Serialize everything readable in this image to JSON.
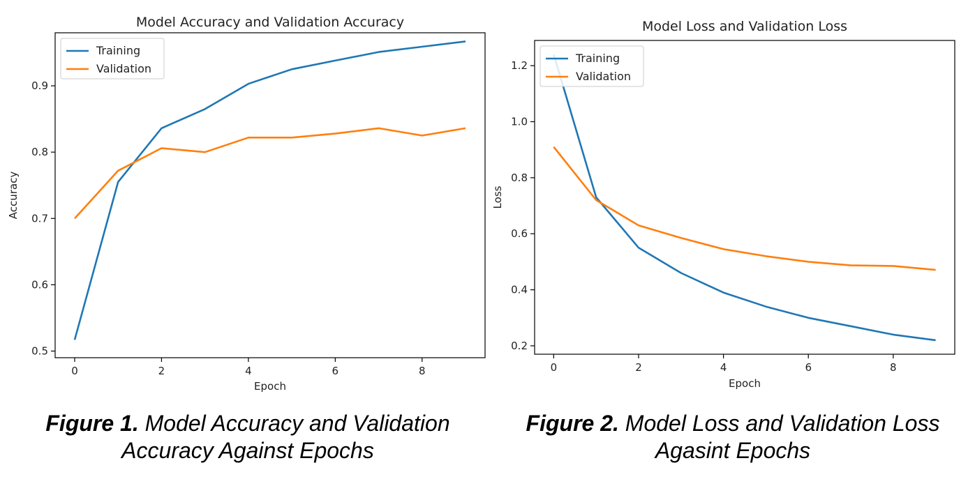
{
  "chart_data": [
    {
      "type": "line",
      "title": "Model Accuracy and Validation Accuracy",
      "xlabel": "Epoch",
      "ylabel": "Accuracy",
      "xlim": [
        -0.45,
        9.45
      ],
      "ylim": [
        0.49,
        0.98
      ],
      "xticks": [
        0,
        2,
        4,
        6,
        8
      ],
      "yticks": [
        0.5,
        0.6,
        0.7,
        0.8,
        0.9
      ],
      "grid": false,
      "legend": "upper-left",
      "x": [
        0,
        1,
        2,
        3,
        4,
        5,
        6,
        7,
        8,
        9
      ],
      "series": [
        {
          "name": "Training",
          "color": "#1f77b4",
          "values": [
            0.517,
            0.755,
            0.836,
            0.865,
            0.903,
            0.925,
            0.938,
            0.951,
            0.959,
            0.967
          ]
        },
        {
          "name": "Validation",
          "color": "#ff7f0e",
          "values": [
            0.7,
            0.772,
            0.806,
            0.8,
            0.822,
            0.822,
            0.828,
            0.836,
            0.825,
            0.836
          ]
        }
      ]
    },
    {
      "type": "line",
      "title": "Model Loss and Validation Loss",
      "xlabel": "Epoch",
      "ylabel": "Loss",
      "xlim": [
        -0.45,
        9.45
      ],
      "ylim": [
        0.17,
        1.29
      ],
      "xticks": [
        0,
        2,
        4,
        6,
        8
      ],
      "yticks": [
        0.2,
        0.4,
        0.6,
        0.8,
        1.0,
        1.2
      ],
      "grid": false,
      "legend": "upper-left",
      "x": [
        0,
        1,
        2,
        3,
        4,
        5,
        6,
        7,
        8,
        9
      ],
      "series": [
        {
          "name": "Training",
          "color": "#1f77b4",
          "values": [
            1.24,
            0.73,
            0.55,
            0.46,
            0.39,
            0.34,
            0.3,
            0.27,
            0.24,
            0.22
          ]
        },
        {
          "name": "Validation",
          "color": "#ff7f0e",
          "values": [
            0.91,
            0.72,
            0.63,
            0.585,
            0.545,
            0.52,
            0.5,
            0.487,
            0.485,
            0.471
          ]
        }
      ]
    }
  ],
  "captions": [
    {
      "label": "Figure 1.",
      "text": " Model Accuracy and Validation Accuracy Against Epochs"
    },
    {
      "label": "Figure 2.",
      "text": " Model Loss and Validation Loss Agasint Epochs"
    }
  ]
}
